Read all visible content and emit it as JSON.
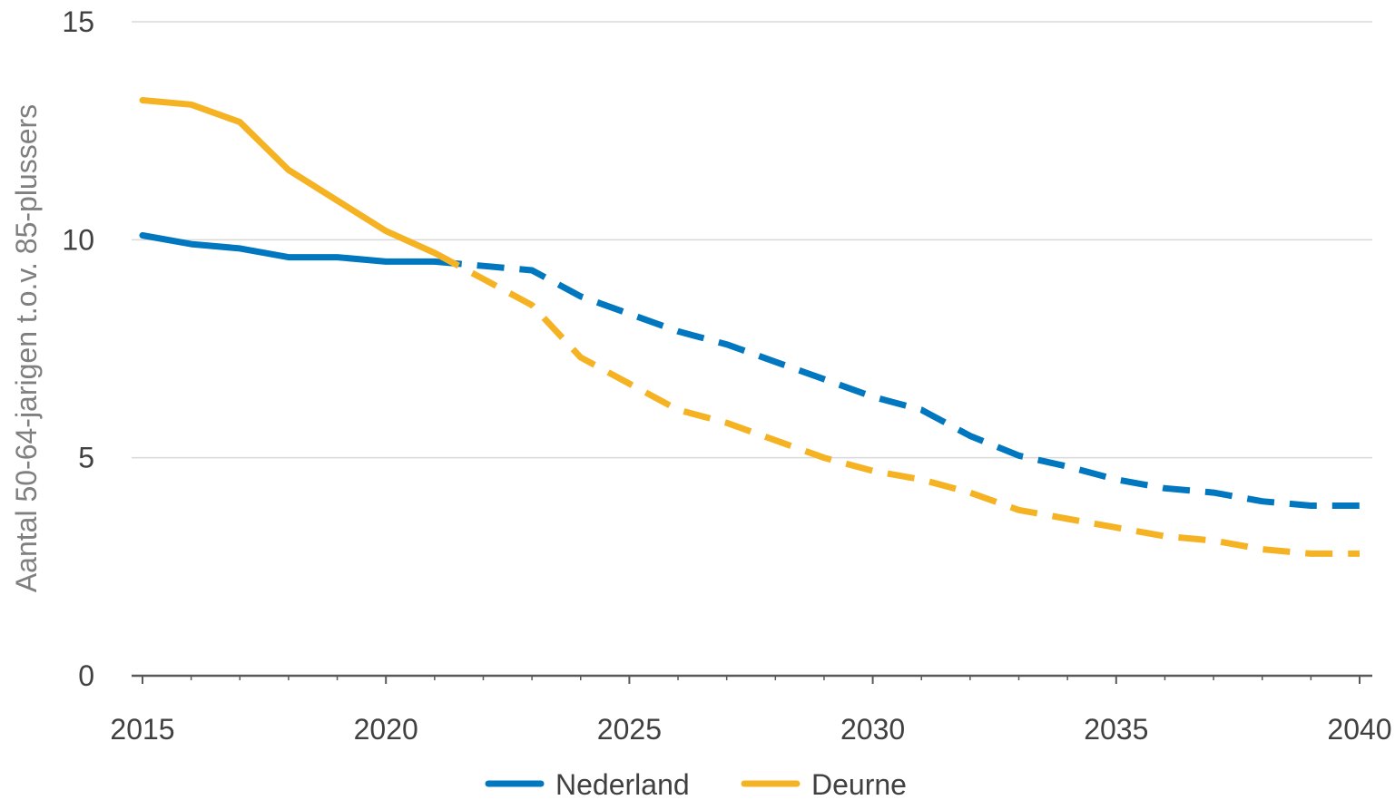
{
  "chart_data": {
    "type": "line",
    "title": "",
    "xlabel": "",
    "ylabel": "Aantal 50-64-jarigen t.o.v. 85-plussers",
    "xlim": [
      2015,
      2040
    ],
    "ylim": [
      0,
      15
    ],
    "x_ticks": [
      "2015",
      "2020",
      "2025",
      "2030",
      "2035",
      "2040"
    ],
    "y_ticks": [
      "0",
      "5",
      "10",
      "15"
    ],
    "grid": "horizontal",
    "legend_position": "bottom",
    "x": [
      2015,
      2016,
      2017,
      2018,
      2019,
      2020,
      2021,
      2022,
      2023,
      2024,
      2025,
      2026,
      2027,
      2028,
      2029,
      2030,
      2031,
      2032,
      2033,
      2034,
      2035,
      2036,
      2037,
      2038,
      2039,
      2040
    ],
    "projection_start": 2021,
    "line_styles": {
      "observed": "solid",
      "projection": "dashed"
    },
    "series": [
      {
        "name": "Nederland",
        "color": "#0077bf",
        "values": [
          10.1,
          9.9,
          9.8,
          9.6,
          9.6,
          9.5,
          9.5,
          9.4,
          9.3,
          8.7,
          8.3,
          7.9,
          7.6,
          7.2,
          6.8,
          6.4,
          6.1,
          5.5,
          5.05,
          4.8,
          4.5,
          4.3,
          4.2,
          4.0,
          3.9,
          3.9
        ]
      },
      {
        "name": "Deurne",
        "color": "#f5b324",
        "values": [
          13.2,
          13.1,
          12.7,
          11.6,
          10.9,
          10.2,
          9.7,
          9.1,
          8.5,
          7.3,
          6.7,
          6.1,
          5.8,
          5.4,
          5.0,
          4.7,
          4.5,
          4.2,
          3.8,
          3.6,
          3.4,
          3.2,
          3.1,
          2.9,
          2.8,
          2.8
        ]
      }
    ]
  }
}
